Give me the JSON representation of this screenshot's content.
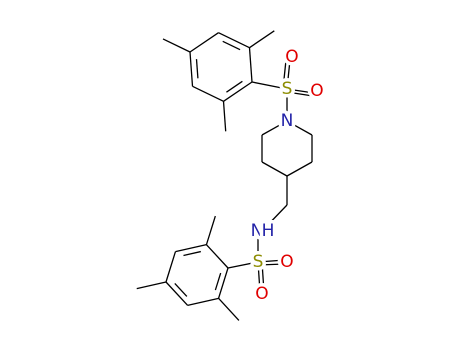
{
  "atoms": [
    "S",
    "O",
    "O",
    "N",
    "N",
    "H",
    "S",
    "O",
    "O"
  ]
}
